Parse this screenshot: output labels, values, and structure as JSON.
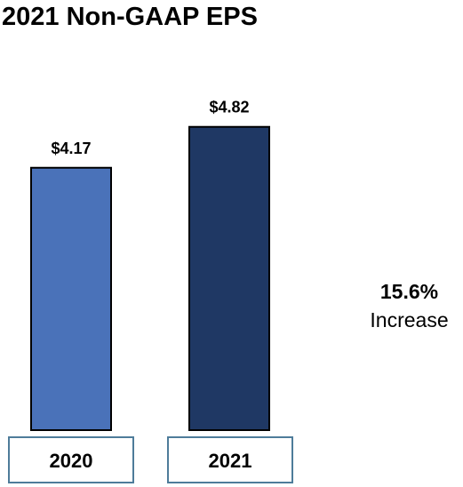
{
  "chart_data": {
    "type": "bar",
    "title": "2021 Non-GAAP EPS",
    "categories": [
      "2020",
      "2021"
    ],
    "values": [
      4.17,
      4.82
    ],
    "value_labels": [
      "$4.17",
      "$4.82"
    ],
    "colors": [
      "#4a72b9",
      "#1f3864"
    ],
    "category_box_border_color": "#4e7c9a",
    "grid": false,
    "legend": "none"
  },
  "callout": {
    "value": "15.6%",
    "label": "Increase"
  }
}
